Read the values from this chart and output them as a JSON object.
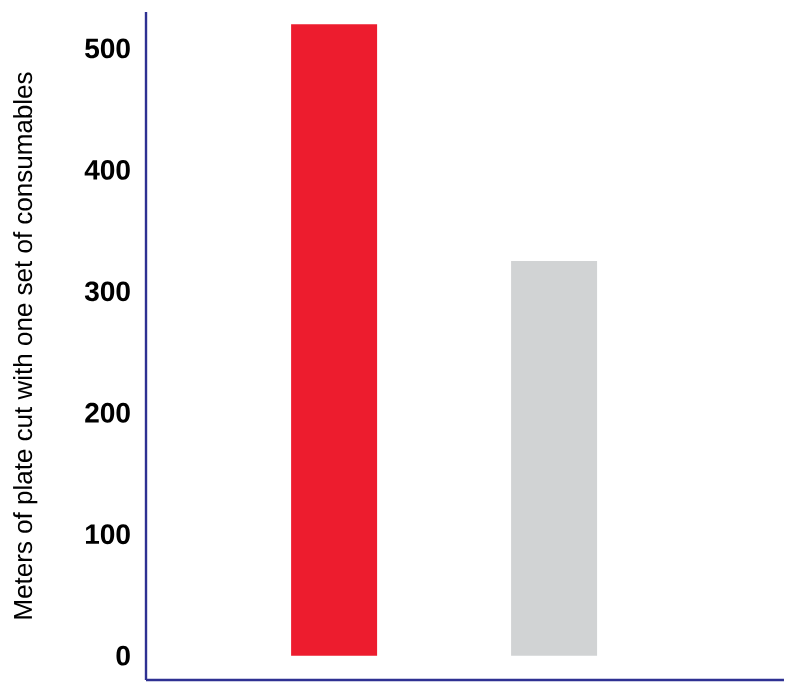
{
  "chart_data": {
    "type": "bar",
    "ylabel": "Meters of plate cut with one set of consumables",
    "categories": [
      null,
      null
    ],
    "values": [
      520,
      325
    ],
    "colors": [
      "#ed1c2e",
      "#d1d3d4"
    ],
    "ylim": [
      -20,
      530
    ],
    "yticks": [
      0,
      100,
      200,
      300,
      400,
      500
    ]
  }
}
